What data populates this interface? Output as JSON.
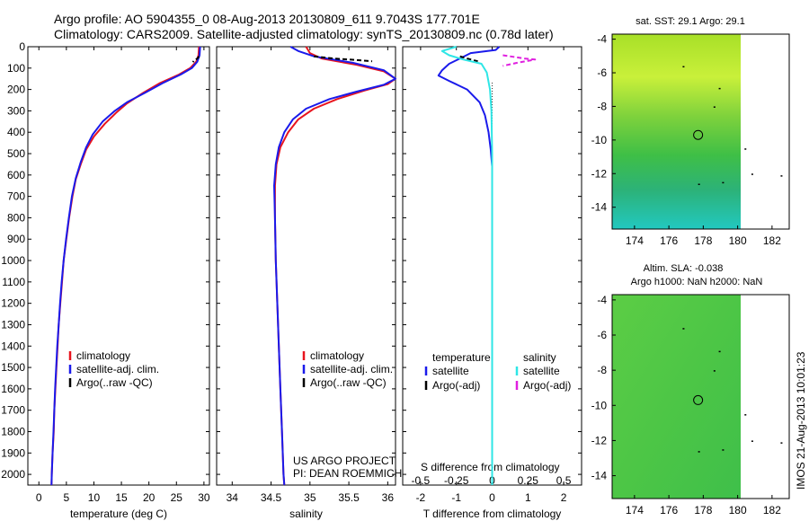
{
  "header": {
    "title": "Argo profile: AO 5904355_0 08-Aug-2013 20130809_611 9.7043S 177.701E",
    "subtitle": "Climatology: CARS2009. Satellite-adjusted climatology: synTS_20130809.nc (0.78d later)"
  },
  "credit": {
    "line1": "US ARGO PROJECT",
    "line2": "PI: DEAN ROEMMICH"
  },
  "stamp": "IMOS 21-Aug-2013 10:01:23",
  "colors": {
    "climatology": "#e8141e",
    "satellite": "#1a1aeb",
    "argo": "#000000",
    "satellite_salinity": "#2ee6e6",
    "argo_salinity": "#e020e0"
  },
  "chart_data": [
    {
      "id": "temperature",
      "type": "line",
      "xlabel": "temperature (deg C)",
      "ylabel": "",
      "xlim": [
        -2,
        31
      ],
      "ylim": [
        2050,
        0
      ],
      "xticks": [
        0,
        5,
        10,
        15,
        20,
        25,
        30
      ],
      "yticks": [
        0,
        100,
        200,
        300,
        400,
        500,
        600,
        700,
        800,
        900,
        1000,
        1100,
        1200,
        1300,
        1400,
        1500,
        1600,
        1700,
        1800,
        1900,
        2000
      ],
      "legend": {
        "placement": "lower-center",
        "entries": [
          "climatology",
          "satellite-adj. clim.",
          "Argo(..raw -QC)"
        ]
      },
      "series": [
        {
          "name": "climatology",
          "color": "#e8141e",
          "points": [
            [
              29.1,
              0
            ],
            [
              29.0,
              40
            ],
            [
              28.6,
              70
            ],
            [
              27.5,
              100
            ],
            [
              25.5,
              130
            ],
            [
              22.0,
              170
            ],
            [
              19.0,
              215
            ],
            [
              16.0,
              265
            ],
            [
              14.0,
              310
            ],
            [
              12.0,
              360
            ],
            [
              10.0,
              420
            ],
            [
              8.6,
              480
            ],
            [
              7.6,
              550
            ],
            [
              6.7,
              620
            ],
            [
              6.1,
              700
            ],
            [
              5.5,
              800
            ],
            [
              5.0,
              900
            ],
            [
              4.5,
              1000
            ],
            [
              4.2,
              1100
            ],
            [
              3.9,
              1200
            ],
            [
              3.6,
              1300
            ],
            [
              3.4,
              1400
            ],
            [
              3.2,
              1500
            ],
            [
              3.0,
              1600
            ],
            [
              2.8,
              1700
            ],
            [
              2.7,
              1800
            ],
            [
              2.5,
              1900
            ],
            [
              2.35,
              2000
            ],
            [
              2.3,
              2050
            ]
          ]
        },
        {
          "name": "satellite-adj. clim.",
          "color": "#1a1aeb",
          "points": [
            [
              29.3,
              0
            ],
            [
              29.2,
              40
            ],
            [
              28.8,
              70
            ],
            [
              27.8,
              100
            ],
            [
              25.8,
              130
            ],
            [
              22.5,
              170
            ],
            [
              19.3,
              215
            ],
            [
              16.0,
              260
            ],
            [
              13.8,
              300
            ],
            [
              11.6,
              350
            ],
            [
              9.8,
              410
            ],
            [
              8.6,
              470
            ],
            [
              7.6,
              540
            ],
            [
              6.7,
              615
            ],
            [
              6.0,
              700
            ],
            [
              5.45,
              800
            ],
            [
              4.95,
              900
            ],
            [
              4.5,
              1000
            ],
            [
              4.15,
              1100
            ],
            [
              3.85,
              1200
            ],
            [
              3.6,
              1300
            ],
            [
              3.35,
              1400
            ],
            [
              3.15,
              1500
            ],
            [
              2.95,
              1600
            ],
            [
              2.8,
              1700
            ],
            [
              2.65,
              1800
            ],
            [
              2.5,
              1900
            ],
            [
              2.35,
              2000
            ],
            [
              2.3,
              2050
            ]
          ]
        },
        {
          "name": "Argo(..raw -QC)",
          "color": "#000000",
          "points": [
            [
              29.1,
              45
            ],
            [
              28.8,
              55
            ],
            [
              28.2,
              65
            ],
            [
              28.0,
              72
            ]
          ]
        }
      ]
    },
    {
      "id": "salinity",
      "type": "line",
      "xlabel": "salinity",
      "ylabel": "",
      "xlim": [
        33.8,
        36.1
      ],
      "ylim": [
        2050,
        0
      ],
      "xticks": [
        34,
        34.5,
        35,
        35.5,
        36
      ],
      "legend": {
        "placement": "lower-center",
        "entries": [
          "climatology",
          "satellite-adj. clim.",
          "Argo(..raw -QC)"
        ]
      },
      "series": [
        {
          "name": "climatology",
          "color": "#e8141e",
          "points": [
            [
              34.95,
              0
            ],
            [
              35.0,
              30
            ],
            [
              35.15,
              55
            ],
            [
              35.6,
              85
            ],
            [
              35.95,
              115
            ],
            [
              36.1,
              150
            ],
            [
              36.0,
              175
            ],
            [
              35.7,
              205
            ],
            [
              35.35,
              245
            ],
            [
              35.05,
              290
            ],
            [
              34.85,
              340
            ],
            [
              34.72,
              400
            ],
            [
              34.62,
              470
            ],
            [
              34.57,
              550
            ],
            [
              34.55,
              650
            ],
            [
              34.55,
              800
            ],
            [
              34.56,
              1000
            ],
            [
              34.58,
              1200
            ],
            [
              34.6,
              1400
            ],
            [
              34.62,
              1600
            ],
            [
              34.64,
              1800
            ],
            [
              34.66,
              2000
            ],
            [
              34.67,
              2050
            ]
          ]
        },
        {
          "name": "satellite-adj. clim.",
          "color": "#1a1aeb",
          "points": [
            [
              34.75,
              0
            ],
            [
              34.85,
              20
            ],
            [
              35.05,
              45
            ],
            [
              35.55,
              75
            ],
            [
              35.95,
              110
            ],
            [
              36.1,
              150
            ],
            [
              35.95,
              178
            ],
            [
              35.6,
              210
            ],
            [
              35.25,
              245
            ],
            [
              34.95,
              290
            ],
            [
              34.78,
              340
            ],
            [
              34.67,
              400
            ],
            [
              34.6,
              470
            ],
            [
              34.56,
              550
            ],
            [
              34.54,
              650
            ],
            [
              34.55,
              800
            ],
            [
              34.56,
              1000
            ],
            [
              34.58,
              1200
            ],
            [
              34.6,
              1400
            ],
            [
              34.62,
              1600
            ],
            [
              34.64,
              1800
            ],
            [
              34.66,
              2000
            ],
            [
              34.67,
              2050
            ]
          ]
        },
        {
          "name": "Argo(..raw -QC)",
          "color": "#000000",
          "points": [
            [
              35.05,
              45
            ],
            [
              35.3,
              55
            ],
            [
              35.6,
              62
            ],
            [
              35.8,
              68
            ]
          ]
        }
      ]
    },
    {
      "id": "difference",
      "type": "line",
      "xlabel": "T difference from climatology",
      "xlabel_top": "S difference from climatology",
      "ylabel": "",
      "xlim": [
        -2.5,
        2.5
      ],
      "ylim": [
        2050,
        0
      ],
      "xticks": [
        -2,
        -1,
        0,
        1,
        2
      ],
      "xticks_top": [
        "-0.5",
        "-0.25",
        "0",
        "0.25",
        "0.5"
      ],
      "legend": {
        "placement": "lower-center",
        "groups": [
          "temperature",
          "salinity"
        ],
        "entries": [
          "satellite",
          "Argo(-adj)",
          "satellite",
          "Argo(-adj)"
        ]
      },
      "series": [
        {
          "name": "satellite",
          "group": "temperature",
          "color": "#1a1aeb",
          "points": [
            [
              0.2,
              0
            ],
            [
              0.1,
              15
            ],
            [
              -0.6,
              30
            ],
            [
              -0.9,
              55
            ],
            [
              -1.2,
              80
            ],
            [
              -1.4,
              110
            ],
            [
              -1.5,
              135
            ],
            [
              -1.2,
              160
            ],
            [
              -0.7,
              200
            ],
            [
              -0.35,
              260
            ],
            [
              -0.2,
              320
            ],
            [
              -0.1,
              400
            ],
            [
              -0.04,
              480
            ],
            [
              0,
              560
            ],
            [
              0,
              2050
            ]
          ]
        },
        {
          "name": "Argo(-adj)",
          "group": "temperature",
          "color": "#000000",
          "points": [
            [
              -0.9,
              45
            ],
            [
              -0.7,
              55
            ],
            [
              -0.4,
              68
            ]
          ]
        },
        {
          "name": "satellite",
          "group": "salinity",
          "color": "#2ee6e6",
          "points": [
            [
              -1.0,
              0
            ],
            [
              -1.4,
              20
            ],
            [
              -1.2,
              40
            ],
            [
              -0.8,
              60
            ],
            [
              -0.3,
              80
            ],
            [
              -0.15,
              120
            ],
            [
              -0.06,
              200
            ],
            [
              -0.02,
              300
            ],
            [
              0,
              500
            ],
            [
              0,
              2050
            ]
          ]
        },
        {
          "name": "Argo(-adj)",
          "group": "salinity",
          "color": "#e020e0",
          "points": [
            [
              0.3,
              40
            ],
            [
              0.9,
              55
            ],
            [
              1.2,
              60
            ],
            [
              0.7,
              75
            ],
            [
              0.3,
              90
            ]
          ]
        }
      ]
    },
    {
      "id": "sst-map",
      "type": "heatmap",
      "title": "sat. SST: 29.1  Argo: 29.1",
      "xticks": [
        174,
        176,
        178,
        180,
        182
      ],
      "yticks": [
        -4,
        -6,
        -8,
        -10,
        -12,
        -14
      ],
      "xlim": [
        172.7,
        183.0
      ],
      "ylim": [
        -15.3,
        -3.7
      ],
      "profile_marker": [
        177.7,
        -9.7
      ]
    },
    {
      "id": "sla-map",
      "type": "heatmap",
      "title": "Altim. SLA: -0.038",
      "subtitle": "Argo h1000: NaN  h2000: NaN",
      "xticks": [
        174,
        176,
        178,
        180,
        182
      ],
      "yticks": [
        -4,
        -6,
        -8,
        -10,
        -12,
        -14
      ],
      "xlim": [
        172.7,
        183.0
      ],
      "ylim": [
        -15.3,
        -3.7
      ],
      "profile_marker": [
        177.7,
        -9.7
      ]
    }
  ]
}
